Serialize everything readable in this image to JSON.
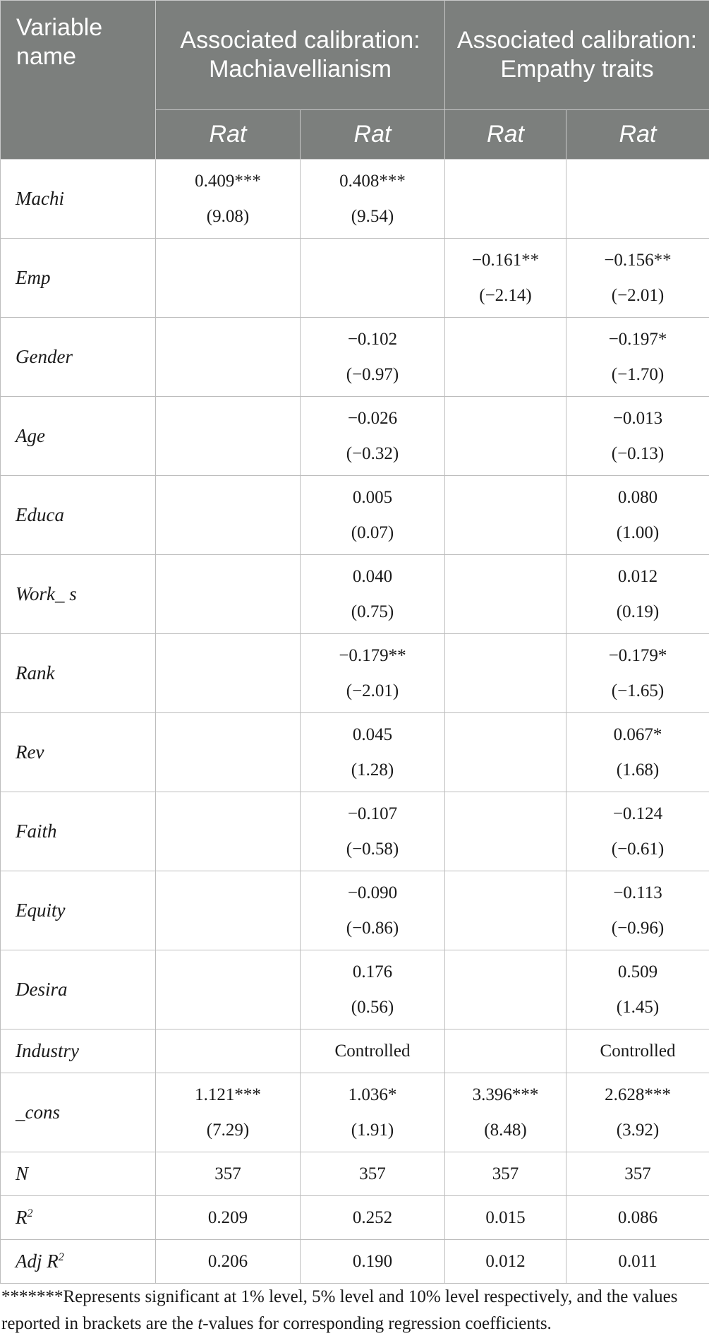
{
  "header": {
    "variable_name": "Variable name",
    "group1": "Associated calibration: Machiavellianism",
    "group2": "Associated calibration: Empathy traits",
    "subheaders": [
      "Rat",
      "Rat",
      "Rat",
      "Rat"
    ]
  },
  "rows": [
    {
      "name": "Machi",
      "cells": [
        [
          "0.409***",
          "(9.08)"
        ],
        [
          "0.408***",
          "(9.54)"
        ],
        [
          "",
          ""
        ],
        [
          "",
          ""
        ]
      ]
    },
    {
      "name": "Emp",
      "cells": [
        [
          "",
          ""
        ],
        [
          "",
          ""
        ],
        [
          "−0.161**",
          "(−2.14)"
        ],
        [
          "−0.156**",
          "(−2.01)"
        ]
      ]
    },
    {
      "name": "Gender",
      "cells": [
        [
          "",
          ""
        ],
        [
          "−0.102",
          "(−0.97)"
        ],
        [
          "",
          ""
        ],
        [
          "−0.197*",
          "(−1.70)"
        ]
      ]
    },
    {
      "name": "Age",
      "cells": [
        [
          "",
          ""
        ],
        [
          "−0.026",
          "(−0.32)"
        ],
        [
          "",
          ""
        ],
        [
          "−0.013",
          "(−0.13)"
        ]
      ]
    },
    {
      "name": "Educa",
      "cells": [
        [
          "",
          ""
        ],
        [
          "0.005",
          "(0.07)"
        ],
        [
          "",
          ""
        ],
        [
          "0.080",
          "(1.00)"
        ]
      ]
    },
    {
      "name": "Work_ s",
      "cells": [
        [
          "",
          ""
        ],
        [
          "0.040",
          "(0.75)"
        ],
        [
          "",
          ""
        ],
        [
          "0.012",
          "(0.19)"
        ]
      ]
    },
    {
      "name": "Rank",
      "cells": [
        [
          "",
          ""
        ],
        [
          "−0.179**",
          "(−2.01)"
        ],
        [
          "",
          ""
        ],
        [
          "−0.179*",
          "(−1.65)"
        ]
      ]
    },
    {
      "name": "Rev",
      "cells": [
        [
          "",
          ""
        ],
        [
          "0.045",
          "(1.28)"
        ],
        [
          "",
          ""
        ],
        [
          "0.067*",
          "(1.68)"
        ]
      ]
    },
    {
      "name": "Faith",
      "cells": [
        [
          "",
          ""
        ],
        [
          "−0.107",
          "(−0.58)"
        ],
        [
          "",
          ""
        ],
        [
          "−0.124",
          "(−0.61)"
        ]
      ]
    },
    {
      "name": "Equity",
      "cells": [
        [
          "",
          ""
        ],
        [
          "−0.090",
          "(−0.86)"
        ],
        [
          "",
          ""
        ],
        [
          "−0.113",
          "(−0.96)"
        ]
      ]
    },
    {
      "name": "Desira",
      "cells": [
        [
          "",
          ""
        ],
        [
          "0.176",
          "(0.56)"
        ],
        [
          "",
          ""
        ],
        [
          "0.509",
          "(1.45)"
        ]
      ]
    },
    {
      "name": "Industry",
      "cells": [
        [
          ""
        ],
        [
          "Controlled"
        ],
        [
          ""
        ],
        [
          "Controlled"
        ]
      ]
    },
    {
      "name": "_cons",
      "cells": [
        [
          "1.121***",
          "(7.29)"
        ],
        [
          "1.036*",
          "(1.91)"
        ],
        [
          "3.396***",
          "(8.48)"
        ],
        [
          "2.628***",
          "(3.92)"
        ]
      ]
    },
    {
      "name": "N",
      "cells": [
        [
          "357"
        ],
        [
          "357"
        ],
        [
          "357"
        ],
        [
          "357"
        ]
      ]
    },
    {
      "name": "R2",
      "cells": [
        [
          "0.209"
        ],
        [
          "0.252"
        ],
        [
          "0.015"
        ],
        [
          "0.086"
        ]
      ]
    },
    {
      "name": "Adj R2",
      "cells": [
        [
          "0.206"
        ],
        [
          "0.190"
        ],
        [
          "0.012"
        ],
        [
          "0.011"
        ]
      ]
    }
  ],
  "footnote": {
    "marks": "*******",
    "text_a": "Represents significant at 1% level, 5% level and 10% level respectively, and the values reported in brackets are the ",
    "t": "t",
    "text_b": "-values for corresponding regression coefficients."
  }
}
